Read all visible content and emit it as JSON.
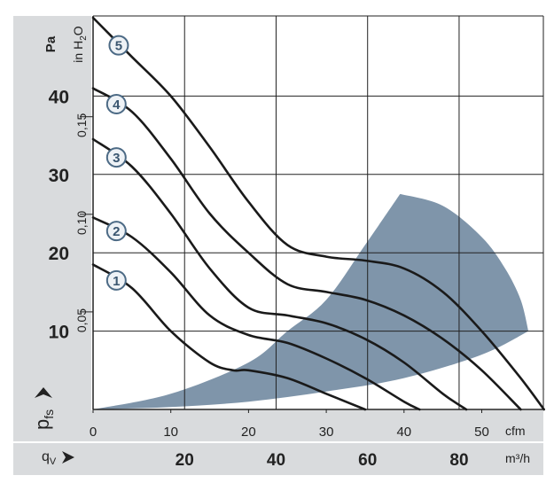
{
  "chart_data": {
    "type": "line",
    "title": "",
    "colors": {
      "band": "#d9dbdd",
      "grid": "#222222",
      "curve": "#1a1a1a",
      "region": "#7f95aa",
      "marker_stroke": "#4c6a85",
      "marker_fill": "#eef2f6"
    },
    "axes": {
      "y_pa": {
        "unit": "Pa",
        "ticks": [
          "10",
          "20",
          "30",
          "40"
        ],
        "tick_values": [
          10,
          20,
          30,
          40
        ],
        "range": [
          0,
          50
        ]
      },
      "y_inh2o": {
        "unit": "in H",
        "unit_sub": "2",
        "unit_tail": "O",
        "ticks": [
          "0,05",
          "0,10",
          "0,15"
        ],
        "tick_values": [
          0.05,
          0.1,
          0.15
        ]
      },
      "x_cfm": {
        "unit": "cfm",
        "ticks": [
          "0",
          "10",
          "20",
          "30",
          "40",
          "50"
        ],
        "tick_values": [
          0,
          10,
          20,
          30,
          40,
          50
        ],
        "range": [
          0,
          60
        ]
      },
      "x_m3h": {
        "unit": "m³/h",
        "ticks": [
          "20",
          "40",
          "60",
          "80"
        ],
        "tick_values": [
          20,
          40,
          60,
          80
        ]
      },
      "pressure_symbol": "p",
      "pressure_sub": "fs",
      "flow_symbol": "q",
      "flow_sub": "V"
    },
    "series": [
      {
        "label": "1",
        "x": [
          0,
          5,
          10,
          15,
          18,
          20,
          25,
          30,
          33,
          35
        ],
        "y": [
          18.5,
          15.5,
          10,
          6,
          5,
          5,
          4,
          2,
          0.8,
          0
        ]
      },
      {
        "label": "2",
        "x": [
          0,
          5,
          10,
          15,
          20,
          25,
          30,
          35,
          40,
          42
        ],
        "y": [
          24.5,
          22,
          17.5,
          12,
          9.5,
          8.5,
          6.5,
          4,
          1,
          0
        ]
      },
      {
        "label": "3",
        "x": [
          0,
          5,
          10,
          15,
          20,
          25,
          30,
          35,
          40,
          45,
          48
        ],
        "y": [
          34.5,
          31,
          25,
          18,
          13,
          12,
          11,
          9,
          6,
          2,
          0
        ]
      },
      {
        "label": "4",
        "x": [
          0,
          5,
          10,
          15,
          20,
          25,
          30,
          35,
          40,
          45,
          50,
          55
        ],
        "y": [
          41,
          38,
          32,
          25,
          20,
          16,
          15,
          14,
          12,
          9,
          5,
          0
        ]
      },
      {
        "label": "5",
        "x": [
          0,
          5,
          10,
          15,
          20,
          25,
          30,
          35,
          40,
          45,
          50,
          55,
          58
        ],
        "y": [
          50,
          45,
          40,
          33.5,
          26.5,
          21,
          19.5,
          19,
          18,
          15,
          10,
          4,
          0
        ]
      }
    ],
    "region": {
      "upper": {
        "x": [
          0,
          10,
          20,
          25,
          30,
          35,
          39.5
        ],
        "y": [
          0,
          2,
          6,
          10,
          14,
          21,
          27.5
        ]
      },
      "arc": {
        "x": [
          39.5,
          45,
          50,
          53,
          55,
          56
        ],
        "y": [
          27.5,
          26,
          22,
          18,
          14,
          10
        ]
      },
      "lower": {
        "x": [
          56,
          50,
          40,
          30,
          20,
          10,
          0
        ],
        "y": [
          10,
          7,
          4,
          2.3,
          1,
          0.3,
          0
        ]
      }
    },
    "grid": true
  }
}
